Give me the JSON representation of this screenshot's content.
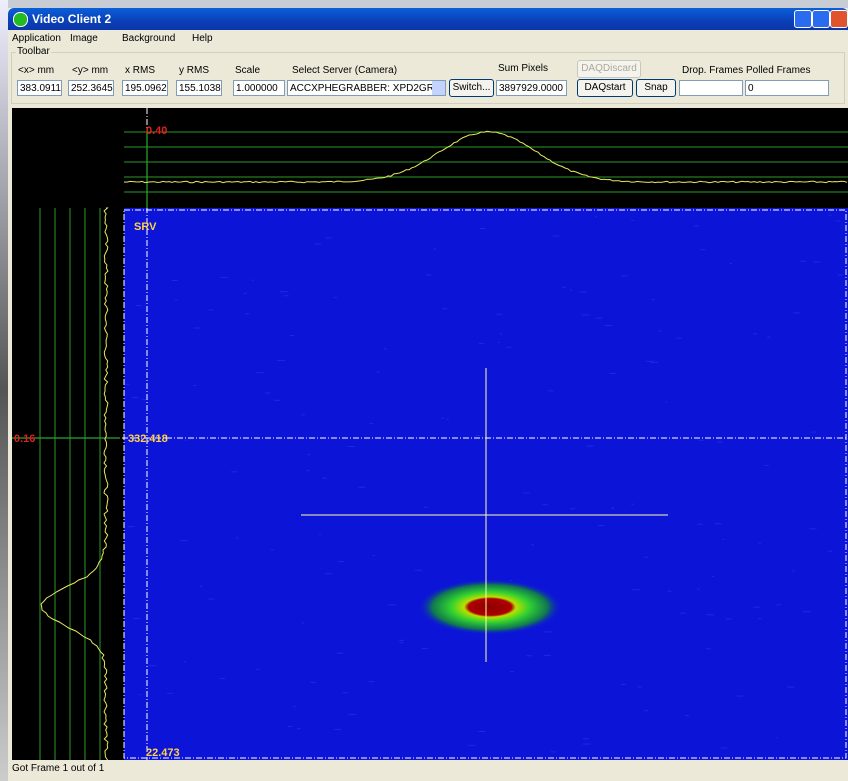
{
  "window": {
    "title": "Video Client 2"
  },
  "menu": [
    "Application",
    "Image",
    "Background",
    "Help"
  ],
  "toolbar": {
    "title": "Toolbar",
    "fields": [
      {
        "label": "<x> mm",
        "value": "383.0911"
      },
      {
        "label": "<y> mm",
        "value": "252.3645"
      },
      {
        "label": "x RMS",
        "value": "195.0962"
      },
      {
        "label": "y RMS",
        "value": "155.1038"
      },
      {
        "label": "Scale",
        "value": "1.000000"
      }
    ],
    "server": {
      "label": "Select Server (Camera)",
      "value": "ACCXPHEGRABBER: XPD2GR"
    },
    "switch": "Switch...",
    "sum_pixels": {
      "label": "Sum Pixels",
      "value": "3897929.0000"
    },
    "daq_discard": "DAQDiscard",
    "daq_start": "DAQstart",
    "snap": "Snap",
    "drop_frames": {
      "label": "Drop. Frames"
    },
    "polled_frames": {
      "label": "Polled Frames",
      "value": "0"
    }
  },
  "display": {
    "top_max": "0.40",
    "left_max": "0.16",
    "source": "SRV",
    "y_marker": "332.418",
    "y_min": "22.473"
  },
  "status": "Got Frame 1 out of 1"
}
